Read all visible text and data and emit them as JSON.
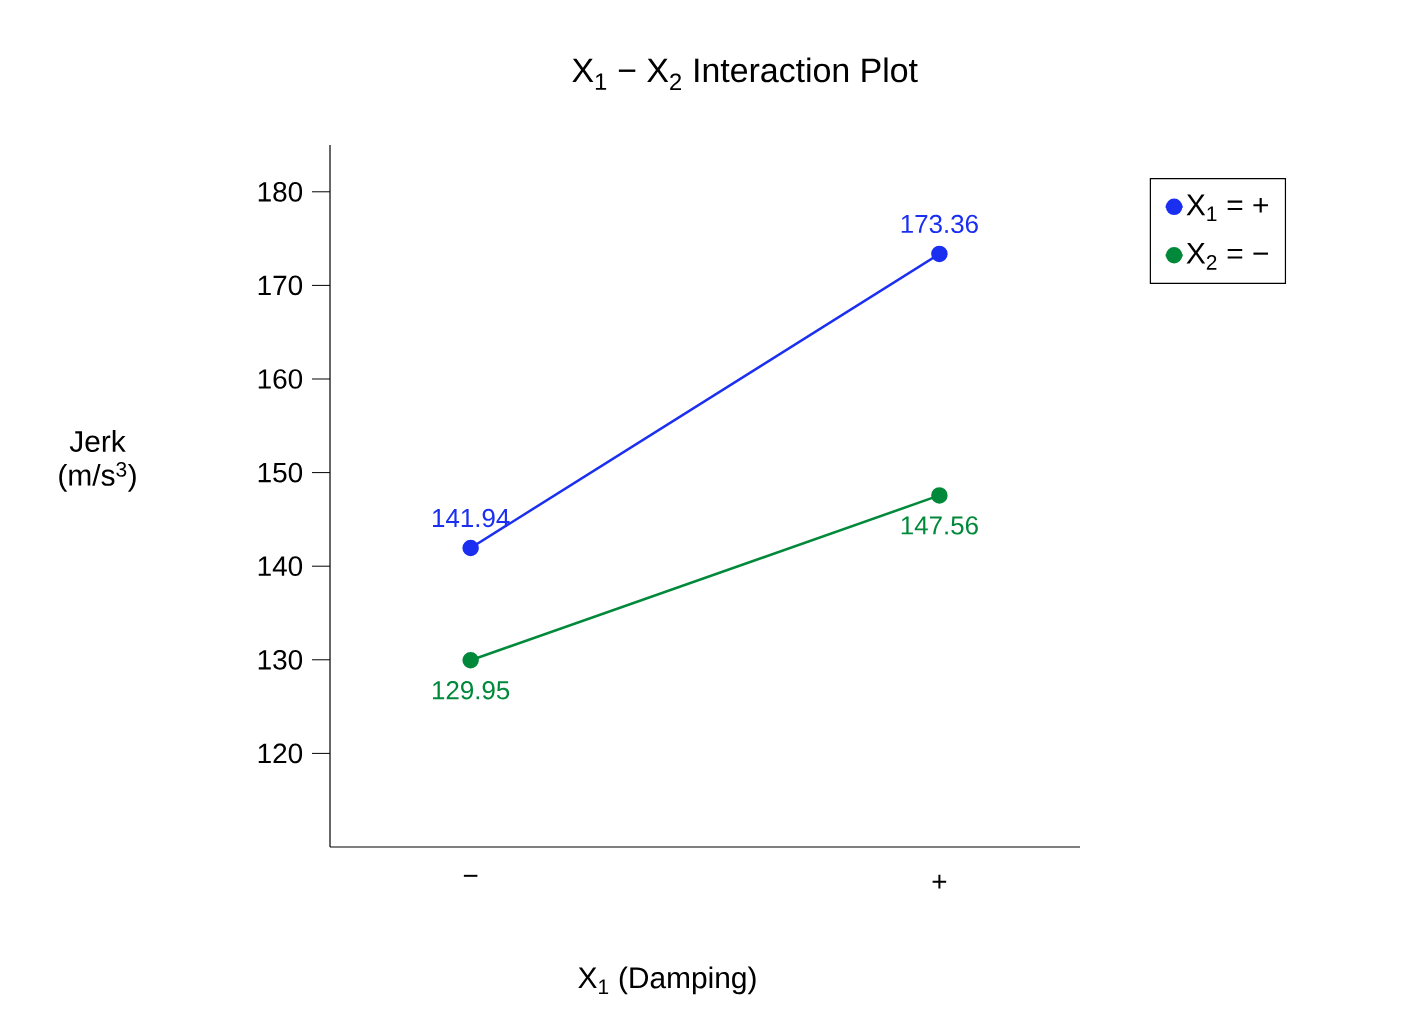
{
  "chart_data": {
    "type": "line",
    "title": "X$_{1}$ − X$_{2}$ Interaction Plot",
    "xlabel": "X$_{1}$ (Damping)",
    "ylabel": "Jerk (m/s$^{3}$)",
    "categories": [
      "−",
      "+"
    ],
    "series": [
      {
        "name": "X$_{1}$ = +",
        "color": "#1a2ff0",
        "values": [
          141.94,
          173.36
        ]
      },
      {
        "name": "X$_{2}$ = −",
        "color": "#00893a",
        "values": [
          129.95,
          147.56
        ]
      }
    ],
    "ylim": [
      110,
      185
    ],
    "yticks": [
      120,
      130,
      140,
      150,
      160,
      170,
      180
    ],
    "marker": "circle",
    "line_style": "solid",
    "legend": "right",
    "data_labels": true,
    "grid": false
  }
}
